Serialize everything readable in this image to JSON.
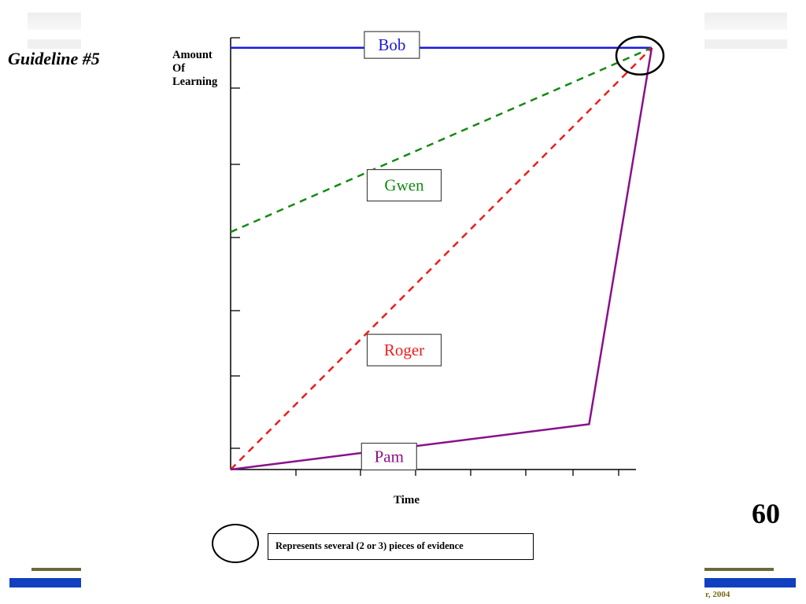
{
  "slide": {
    "title": "Guideline #5",
    "page_number": "60",
    "footer": "r, 2004",
    "legend_text": "Represents several (2 or 3) pieces of evidence"
  },
  "colors": {
    "Bob": "#1a1adc",
    "Gwen": "#138a13",
    "Roger": "#ee1c1c",
    "Pam": "#8a108a",
    "accent_olive": "#6b6b3a",
    "accent_blue": "#1040c0"
  },
  "chart_data": {
    "type": "line",
    "ylabel_lines": [
      "Amount",
      "Of",
      "Learning"
    ],
    "xlabel": "Time",
    "xlim": [
      0,
      7.4
    ],
    "ylim": [
      0,
      6
    ],
    "x_tick_count": 7,
    "y_tick_count": 6,
    "grid": false,
    "series": [
      {
        "name": "Bob",
        "style": "solid",
        "x": [
          0,
          7.4
        ],
        "y": [
          5.86,
          5.86
        ],
        "label_x": 2.35,
        "label_y": 5.9
      },
      {
        "name": "Gwen",
        "style": "dashed",
        "x": [
          0,
          7.4
        ],
        "y": [
          3.3,
          5.86
        ],
        "label_x": 2.4,
        "label_y": 3.95
      },
      {
        "name": "Roger",
        "style": "dashed",
        "x": [
          0,
          7.4
        ],
        "y": [
          0,
          5.86
        ],
        "label_x": 2.4,
        "label_y": 1.66
      },
      {
        "name": "Pam",
        "style": "solid",
        "x": [
          0,
          6.3,
          7.4
        ],
        "y": [
          0,
          0.63,
          5.86
        ],
        "label_x": 2.3,
        "label_y": 0.18
      }
    ],
    "evidence_marker": {
      "x": 7.4,
      "y": 5.86
    }
  }
}
